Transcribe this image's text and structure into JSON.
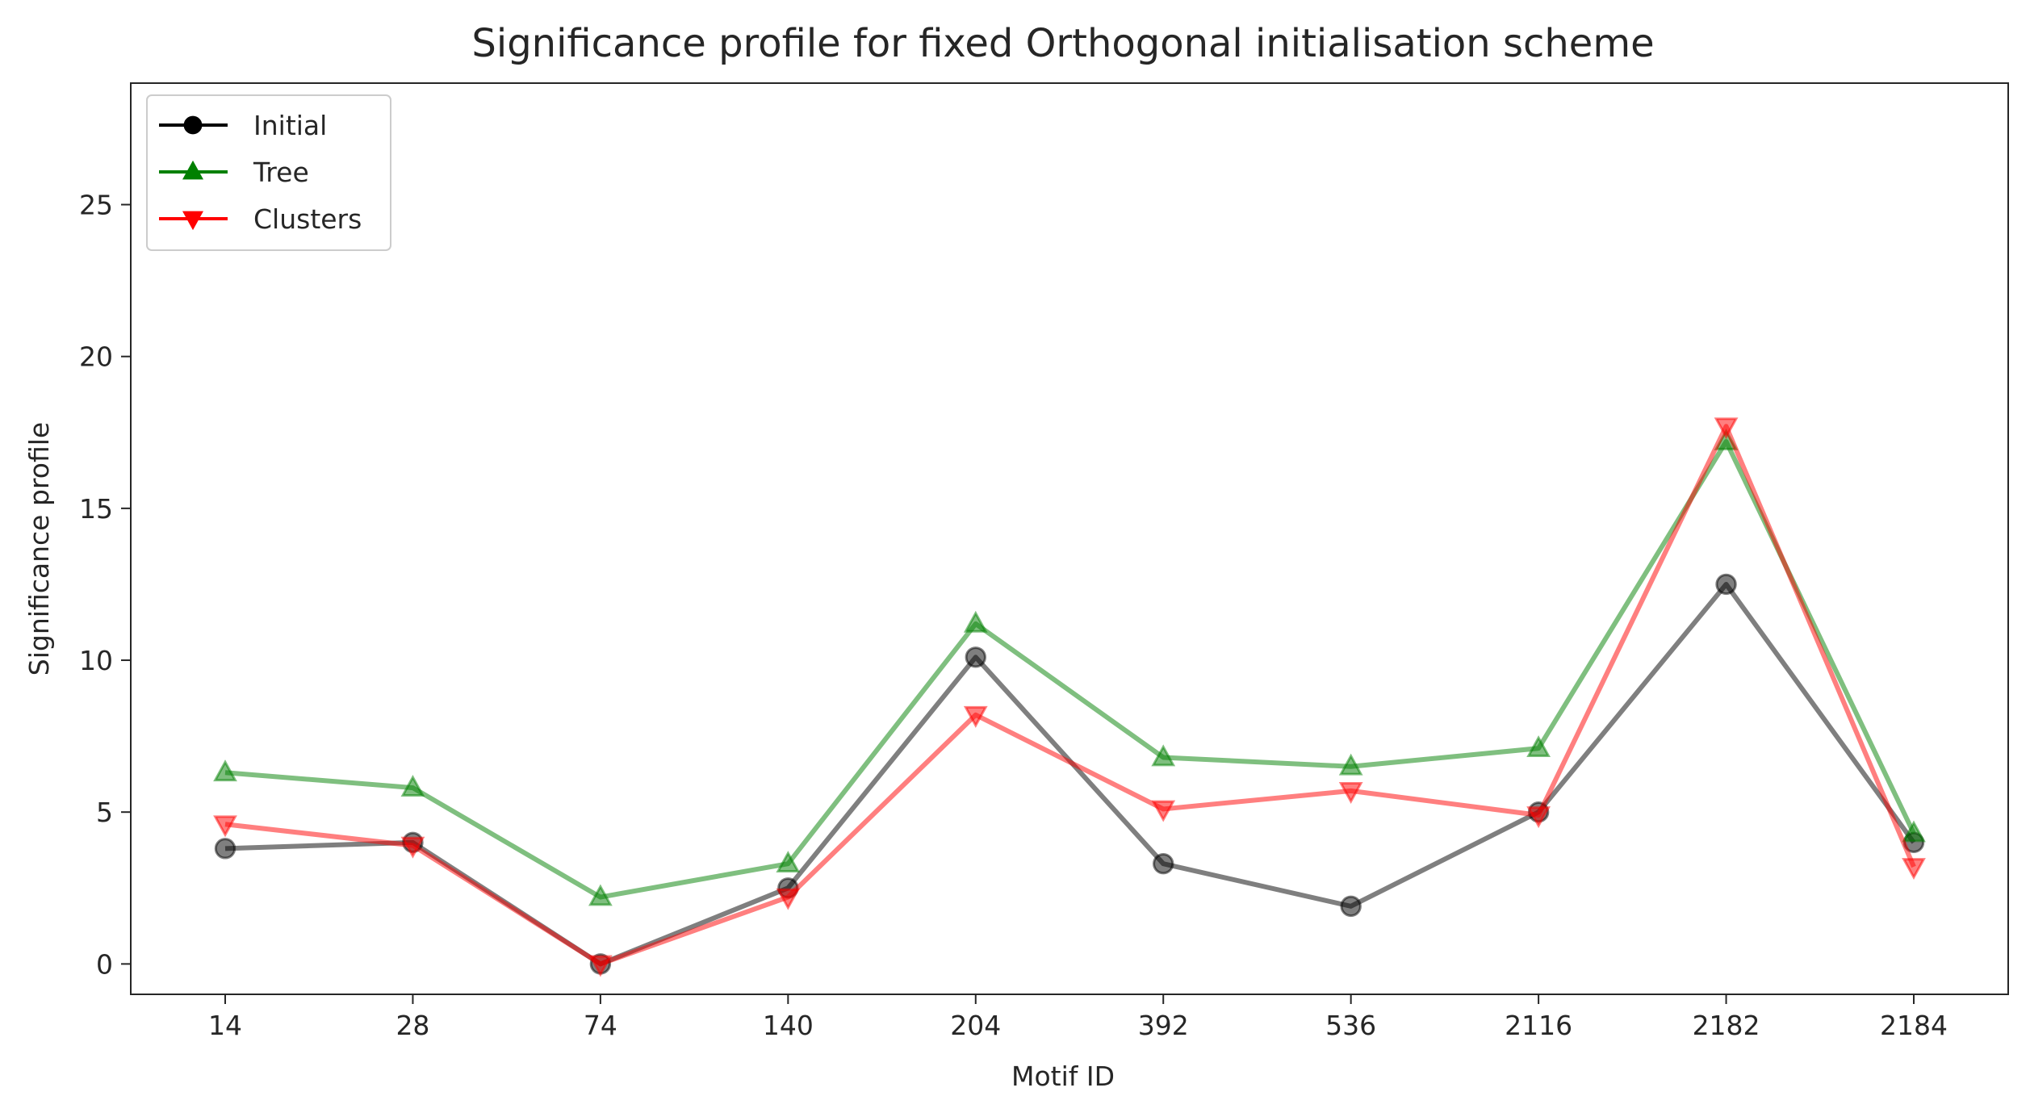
{
  "chart_data": {
    "type": "line",
    "title": "Significance profile for fixed Orthogonal initialisation scheme",
    "xlabel": "Motif ID",
    "ylabel": "Significance profile",
    "categories": [
      "14",
      "28",
      "74",
      "140",
      "204",
      "392",
      "536",
      "2116",
      "2182",
      "2184"
    ],
    "ylim": [
      -1,
      29
    ],
    "yticks": [
      0,
      5,
      10,
      15,
      20,
      25
    ],
    "grid": false,
    "legend_position": "top-left",
    "series": [
      {
        "name": "Initial",
        "color": "#000000",
        "marker": "circle",
        "values": [
          3.8,
          4.0,
          0.0,
          2.5,
          10.1,
          3.3,
          1.9,
          5.0,
          12.5,
          4.0
        ]
      },
      {
        "name": "Tree",
        "color": "#008000",
        "marker": "triangle-up",
        "values": [
          6.3,
          5.8,
          2.2,
          3.3,
          11.2,
          6.8,
          6.5,
          7.1,
          17.2,
          4.3
        ]
      },
      {
        "name": "Clusters",
        "color": "#ff0000",
        "marker": "triangle-down",
        "values": [
          4.6,
          3.9,
          0.0,
          2.2,
          8.2,
          5.1,
          5.7,
          4.9,
          17.7,
          3.2
        ]
      }
    ]
  }
}
